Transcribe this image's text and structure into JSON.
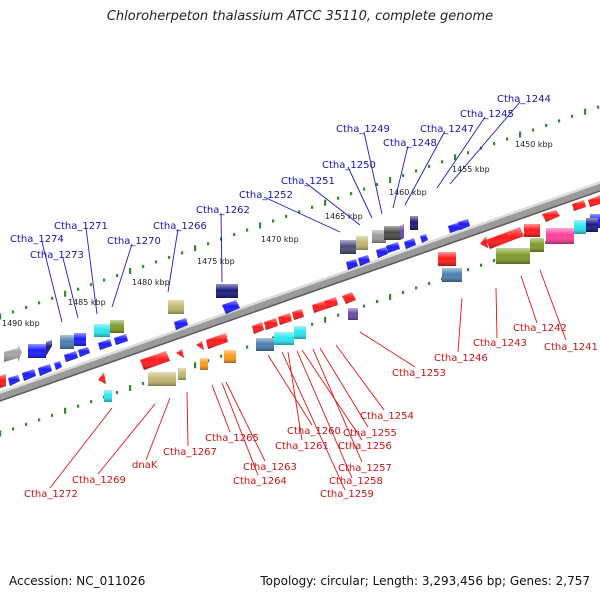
{
  "title": "Chloroherpeton thalassium ATCC 35110, complete genome",
  "footer": {
    "accession": "Accession: NC_011026",
    "summary": "Topology: circular; Length: 3,293,456 bp; Genes: 2,757"
  },
  "colors": {
    "backbone": "#8c8c8c",
    "tick": "#2e8b2e",
    "forward_label": "#1414b4",
    "reverse_label": "#c81414",
    "blue": "#1a1aff",
    "red": "#ff1a1a",
    "navy": "#1a1a80",
    "gray": "#9a9a9a",
    "dark_gray": "#4a4a4a",
    "cyan": "#29e6f0",
    "olive": "#7f9c2a",
    "khaki": "#c2b870",
    "steel": "#4a7fb0",
    "purple": "#6a4aa8",
    "pink": "#ff3e9a",
    "orange": "#ff9a1a"
  },
  "kbp_labels": [
    "1490 kbp",
    "1485 kbp",
    "1480 kbp",
    "1475 kbp",
    "1470 kbp",
    "1465 kbp",
    "1460 kbp",
    "1455 kbp",
    "1450 kbp"
  ],
  "forward_genes": [
    "Ctha_1274",
    "Ctha_1273",
    "Ctha_1271",
    "Ctha_1270",
    "Ctha_1266",
    "Ctha_1262",
    "Ctha_1252",
    "Ctha_1251",
    "Ctha_1250",
    "Ctha_1249",
    "Ctha_1248",
    "Ctha_1247",
    "Ctha_1245",
    "Ctha_1244"
  ],
  "reverse_genes": [
    "Ctha_1272",
    "Ctha_1269",
    "dnaK",
    "Ctha_1267",
    "Ctha_1265",
    "Ctha_1263",
    "Ctha_1264",
    "Ctha_1260",
    "Ctha_1261",
    "Ctha_1255",
    "Ctha_1256",
    "Ctha_1254",
    "Ctha_1257",
    "Ctha_1258",
    "Ctha_1259",
    "Ctha_1253",
    "Ctha_1246",
    "Ctha_1243",
    "Ctha_1242",
    "Ctha_1241"
  ]
}
